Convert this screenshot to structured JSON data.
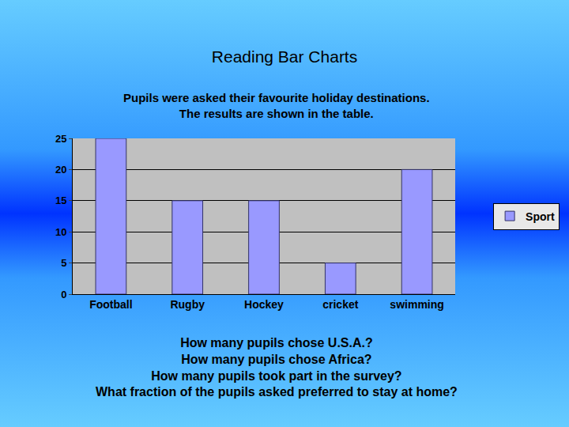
{
  "chart_data": {
    "type": "bar",
    "title": "Reading Bar Charts",
    "subtitle": [
      "Pupils were asked their favourite holiday destinations.",
      "The results are shown in the table."
    ],
    "categories": [
      "Football",
      "Rugby",
      "Hockey",
      "cricket",
      "swimming"
    ],
    "series": [
      {
        "name": "Sport",
        "color": "#9999ff",
        "values": [
          25,
          15,
          15,
          5,
          20
        ]
      }
    ],
    "ylim": [
      0,
      25
    ],
    "yticks": [
      0,
      5,
      10,
      15,
      20,
      25
    ],
    "grid": true,
    "legend": "right",
    "annotations": [
      "How many pupils chose U.S.A.?",
      "How many pupils chose Africa?",
      "How many pupils took part in the survey?",
      "What fraction of the pupils asked preferred to stay at home?"
    ]
  }
}
